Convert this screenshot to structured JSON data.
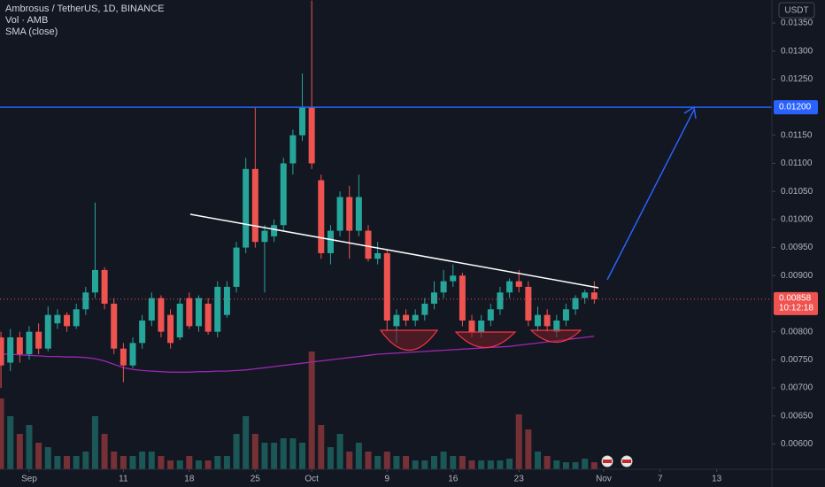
{
  "chart_data": {
    "type": "candlestick",
    "title": "Ambrosus / TetherUS, 1D, BINANCE",
    "indicators": [
      "Vol · AMB",
      "SMA (close)"
    ],
    "currency": "USDT",
    "open": [
      0.0079,
      0.00745,
      0.0079,
      0.0076,
      0.008,
      0.0077,
      0.00815,
      0.0083,
      0.0081,
      0.0084,
      0.0087,
      0.0091,
      0.0085,
      0.0077,
      0.0074,
      0.0078,
      0.0082,
      0.0086,
      0.0083,
      0.0079,
      0.0086,
      0.0081,
      0.0085,
      0.008,
      0.0083,
      0.0088,
      0.0095,
      0.0109,
      0.0096,
      0.0097,
      0.0099,
      0.011,
      0.0115,
      0.012,
      0.0107,
      0.0094,
      0.0098,
      0.0104,
      0.0098,
      0.0098,
      0.0093,
      0.0094,
      0.0081,
      0.0083,
      0.0082,
      0.0083,
      0.0085,
      0.0087,
      0.0089,
      0.009,
      0.0082,
      0.008,
      0.0082,
      0.0084,
      0.0087,
      0.0089,
      0.0088,
      0.0081,
      0.0083,
      0.008,
      0.0082,
      0.0084,
      0.0086,
      0.0087
    ],
    "high": [
      0.008,
      0.00805,
      0.008,
      0.0081,
      0.00815,
      0.00845,
      0.0084,
      0.00835,
      0.0085,
      0.0088,
      0.0103,
      0.00915,
      0.0086,
      0.0078,
      0.0079,
      0.0083,
      0.0087,
      0.00865,
      0.0084,
      0.0086,
      0.0087,
      0.00865,
      0.0086,
      0.0089,
      0.0089,
      0.0096,
      0.0111,
      0.012,
      0.0099,
      0.01,
      0.0111,
      0.0116,
      0.0126,
      0.0139,
      0.0108,
      0.0099,
      0.0105,
      0.0106,
      0.0108,
      0.0099,
      0.0096,
      0.00945,
      0.0084,
      0.0084,
      0.0084,
      0.0086,
      0.0089,
      0.0091,
      0.0092,
      0.00905,
      0.0083,
      0.0083,
      0.0085,
      0.0088,
      0.00895,
      0.0091,
      0.0089,
      0.00845,
      0.0084,
      0.0083,
      0.0085,
      0.00865,
      0.00875,
      0.0089
    ],
    "low": [
      0.007,
      0.0073,
      0.00745,
      0.0075,
      0.0076,
      0.00765,
      0.00805,
      0.008,
      0.00805,
      0.0083,
      0.0086,
      0.0084,
      0.0076,
      0.0071,
      0.00735,
      0.0077,
      0.0081,
      0.0079,
      0.0077,
      0.00785,
      0.00805,
      0.008,
      0.00795,
      0.0079,
      0.00825,
      0.0087,
      0.0094,
      0.0095,
      0.0087,
      0.0096,
      0.0098,
      0.0108,
      0.0114,
      0.0109,
      0.0093,
      0.0092,
      0.0097,
      0.0093,
      0.0097,
      0.00925,
      0.0092,
      0.008,
      0.0078,
      0.0081,
      0.0081,
      0.0082,
      0.0084,
      0.0086,
      0.0088,
      0.0081,
      0.0079,
      0.0079,
      0.0081,
      0.0083,
      0.0086,
      0.0087,
      0.0081,
      0.008,
      0.008,
      0.0079,
      0.0081,
      0.0083,
      0.0085,
      0.0085
    ],
    "close": [
      0.0074,
      0.0079,
      0.0076,
      0.008,
      0.0077,
      0.0083,
      0.0083,
      0.0081,
      0.0084,
      0.0087,
      0.0091,
      0.0085,
      0.0077,
      0.0074,
      0.0078,
      0.0082,
      0.0086,
      0.008,
      0.0078,
      0.0085,
      0.0081,
      0.0086,
      0.008,
      0.0088,
      0.0088,
      0.0095,
      0.0109,
      0.0096,
      0.0098,
      0.0099,
      0.011,
      0.0115,
      0.012,
      0.011,
      0.0094,
      0.0098,
      0.0104,
      0.0098,
      0.0104,
      0.0093,
      0.0094,
      0.0082,
      0.0083,
      0.0082,
      0.0083,
      0.0085,
      0.0087,
      0.0089,
      0.009,
      0.0082,
      0.008,
      0.0082,
      0.0084,
      0.0087,
      0.0089,
      0.0088,
      0.0082,
      0.0083,
      0.0081,
      0.0082,
      0.0084,
      0.0086,
      0.0087,
      0.00858
    ],
    "volume": [
      80,
      60,
      40,
      50,
      30,
      25,
      15,
      15,
      15,
      20,
      60,
      40,
      20,
      15,
      15,
      20,
      20,
      15,
      10,
      10,
      15,
      10,
      10,
      15,
      15,
      40,
      60,
      40,
      30,
      30,
      35,
      35,
      30,
      133,
      50,
      25,
      40,
      20,
      30,
      20,
      15,
      20,
      15,
      15,
      10,
      10,
      15,
      20,
      15,
      15,
      10,
      10,
      10,
      10,
      12,
      62,
      45,
      20,
      15,
      10,
      8,
      8,
      12,
      8
    ],
    "sma": [
      0.0076,
      0.0076,
      0.00759,
      0.00758,
      0.00757,
      0.00756,
      0.00756,
      0.00755,
      0.00755,
      0.00754,
      0.00752,
      0.00748,
      0.00742,
      0.00736,
      0.00733,
      0.00731,
      0.0073,
      0.00729,
      0.00728,
      0.00728,
      0.00728,
      0.00729,
      0.00729,
      0.0073,
      0.0073,
      0.00731,
      0.00732,
      0.00734,
      0.00736,
      0.00738,
      0.0074,
      0.00742,
      0.00744,
      0.00746,
      0.00748,
      0.0075,
      0.00752,
      0.00754,
      0.00756,
      0.00758,
      0.0076,
      0.00761,
      0.00762,
      0.00763,
      0.00764,
      0.00765,
      0.00766,
      0.00767,
      0.00768,
      0.00769,
      0.0077,
      0.00771,
      0.00772,
      0.00773,
      0.00774,
      0.00776,
      0.00778,
      0.0078,
      0.00782,
      0.00784,
      0.00786,
      0.00788,
      0.0079,
      0.00792
    ],
    "up_color": "#26a69a",
    "down_color": "#ef5350",
    "sma_color": "#9c27b0",
    "xlim": [
      -0.1,
      81.86
    ],
    "xticks": [
      {
        "value": 3,
        "label": "Sep"
      },
      {
        "value": 13,
        "label": "11"
      },
      {
        "value": 20,
        "label": "18"
      },
      {
        "value": 27,
        "label": "25"
      },
      {
        "value": 33,
        "label": "Oct"
      },
      {
        "value": 41,
        "label": "9"
      },
      {
        "value": 48,
        "label": "16"
      },
      {
        "value": 55,
        "label": "23"
      },
      {
        "value": 64,
        "label": "Nov"
      },
      {
        "value": 70,
        "label": "7"
      },
      {
        "value": 76,
        "label": "13"
      }
    ],
    "ylim": [
      0.00555,
      0.01391
    ],
    "yticks": [
      {
        "value": 0.0135,
        "label": "0.01350"
      },
      {
        "value": 0.013,
        "label": "0.01300"
      },
      {
        "value": 0.0125,
        "label": "0.01250"
      },
      {
        "value": 0.0115,
        "label": "0.01150"
      },
      {
        "value": 0.011,
        "label": "0.01100"
      },
      {
        "value": 0.0105,
        "label": "0.01050"
      },
      {
        "value": 0.01,
        "label": "0.01000"
      },
      {
        "value": 0.0095,
        "label": "0.00950"
      },
      {
        "value": 0.009,
        "label": "0.00900"
      },
      {
        "value": 0.008,
        "label": "0.00800"
      },
      {
        "value": 0.0075,
        "label": "0.00750"
      },
      {
        "value": 0.007,
        "label": "0.00700"
      },
      {
        "value": 0.0065,
        "label": "0.00650"
      },
      {
        "value": 0.006,
        "label": "0.00600"
      }
    ],
    "volume_lim": [
      0,
      150
    ],
    "hline": {
      "value": 0.012,
      "label": "0.01200",
      "color": "#2962ff"
    },
    "last_price": {
      "value": 0.00858,
      "label": "0.00858"
    },
    "countdown": "10:12:18"
  }
}
